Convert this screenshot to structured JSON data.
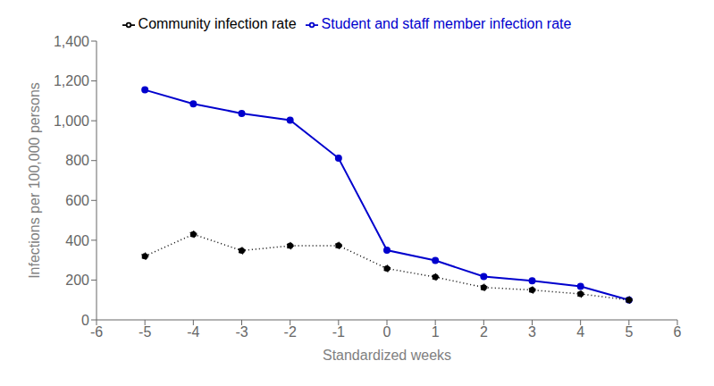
{
  "chart_data": {
    "type": "line",
    "x": [
      -5,
      -4,
      -3,
      -2,
      -1,
      0,
      1,
      2,
      3,
      4,
      5
    ],
    "series": [
      {
        "name": "Student and staff member infection rate",
        "color": "#0000CD",
        "values": [
          1155,
          1085,
          1037,
          1003,
          812,
          350,
          298,
          218,
          196,
          168,
          100
        ],
        "marker": "circle",
        "line_style": "solid"
      },
      {
        "name": "Community infection rate",
        "color": "#000000",
        "values": [
          320,
          430,
          348,
          372,
          373,
          258,
          215,
          163,
          150,
          130,
          100
        ],
        "marker": "circle",
        "line_style": "dotted"
      }
    ],
    "xlabel": "Standardized weeks",
    "ylabel": "Infections per 100,000 persons",
    "xlim": [
      -6,
      6
    ],
    "xticks": [
      -6,
      -5,
      -4,
      -3,
      -2,
      -1,
      0,
      1,
      2,
      3,
      4,
      5,
      6
    ],
    "ylim": [
      0,
      1400
    ],
    "yticks": [
      0,
      200,
      400,
      600,
      800,
      {
        "value": 1000,
        "label": "1,000"
      },
      {
        "value": 1200,
        "label": "1,200"
      },
      {
        "value": 1400,
        "label": "1,400"
      }
    ],
    "grid": false,
    "legend": "top"
  }
}
